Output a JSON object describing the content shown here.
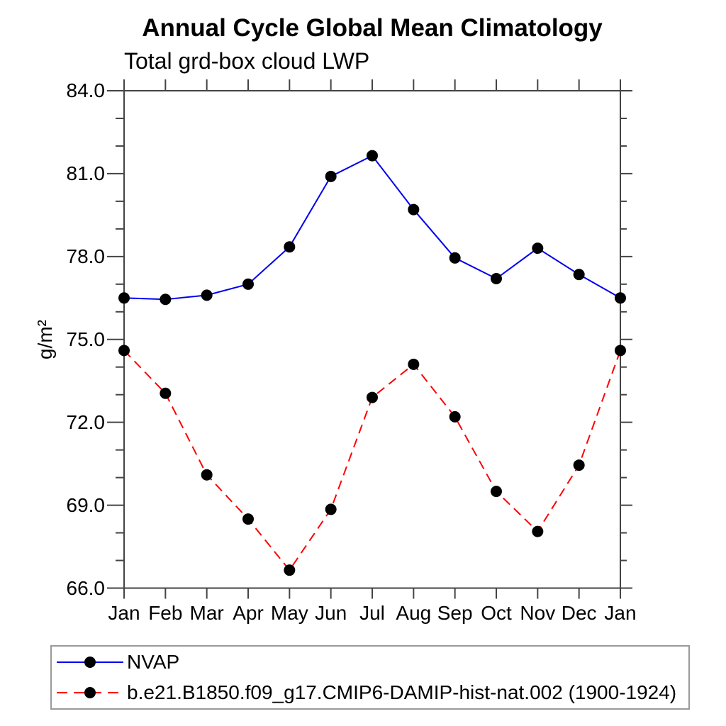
{
  "title": "Annual Cycle Global Mean Climatology",
  "subtitle": "Total grd-box cloud LWP",
  "ylabel": "g/m²",
  "colors": {
    "nvap_line": "#0000ee",
    "model_line": "#ff0000",
    "marker": "#000000",
    "axis": "#444444",
    "legend_border": "#9a9a9a"
  },
  "chart_data": {
    "type": "line",
    "title": "Annual Cycle Global Mean Climatology",
    "subtitle": "Total grd-box cloud LWP",
    "ylabel": "g/m²",
    "xlabel": "",
    "categories": [
      "Jan",
      "Feb",
      "Mar",
      "Apr",
      "May",
      "Jun",
      "Jul",
      "Aug",
      "Sep",
      "Oct",
      "Nov",
      "Dec",
      "Jan"
    ],
    "series": [
      {
        "name": "NVAP",
        "color": "#0000ee",
        "line_style": "solid",
        "marker": "filled-circle",
        "marker_color": "#000000",
        "values": [
          76.5,
          76.45,
          76.6,
          77.0,
          78.35,
          80.9,
          81.65,
          79.7,
          77.95,
          77.2,
          78.3,
          77.35,
          76.5
        ]
      },
      {
        "name": "b.e21.B1850.f09_g17.CMIP6-DAMIP-hist-nat.002 (1900-1924)",
        "color": "#ff0000",
        "line_style": "dashed",
        "marker": "filled-circle",
        "marker_color": "#000000",
        "values": [
          74.6,
          73.05,
          70.1,
          68.5,
          66.65,
          68.85,
          72.9,
          74.1,
          72.2,
          69.5,
          68.05,
          70.45,
          74.6
        ]
      }
    ],
    "ylim": [
      66.0,
      84.0
    ],
    "ytick_major_interval": 3.0,
    "ytick_minor_interval": 1.0,
    "ytick_labels": [
      "66.0",
      "69.0",
      "72.0",
      "75.0",
      "78.0",
      "81.0",
      "84.0"
    ],
    "grid": false,
    "ticks": "outward-all-four-sides",
    "legend_position": "bottom-left-box"
  }
}
